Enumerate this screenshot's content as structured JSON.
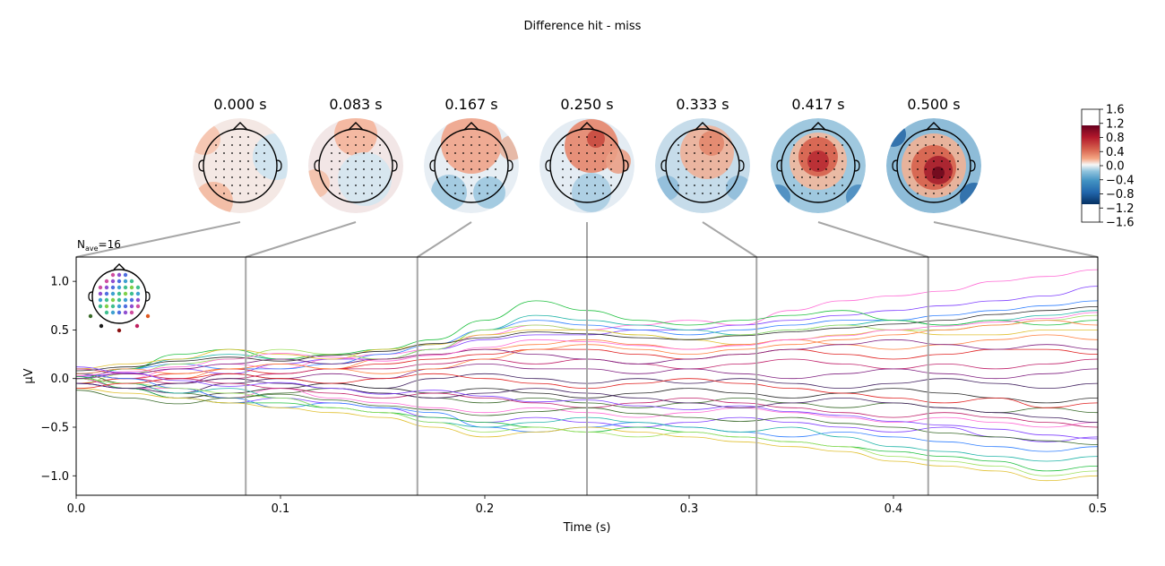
{
  "suptitle": "Difference hit - miss",
  "nave_label": {
    "base": "N",
    "sub": "ave",
    "value": "=16"
  },
  "colorbar": {
    "ticks": [
      "1.6",
      "1.2",
      "0.8",
      "0.4",
      "0.0",
      "−0.4",
      "−0.8",
      "−1.2",
      "−1.6"
    ],
    "colormap": "RdBu_r"
  },
  "topomaps": [
    {
      "label": "0.000 s",
      "time": 0.0
    },
    {
      "label": "0.083 s",
      "time": 0.083
    },
    {
      "label": "0.167 s",
      "time": 0.167
    },
    {
      "label": "0.250 s",
      "time": 0.25
    },
    {
      "label": "0.333 s",
      "time": 0.333
    },
    {
      "label": "0.417 s",
      "time": 0.417
    },
    {
      "label": "0.500 s",
      "time": 0.5
    }
  ],
  "chart_data": {
    "type": "line",
    "title": "",
    "xlabel": "Time (s)",
    "ylabel": "µV",
    "xlim": [
      0.0,
      0.5
    ],
    "ylim": [
      -1.2,
      1.25
    ],
    "xticks": [
      "0.0",
      "0.1",
      "0.2",
      "0.3",
      "0.4",
      "0.5"
    ],
    "xtick_values": [
      0.0,
      0.1,
      0.2,
      0.3,
      0.4,
      0.5
    ],
    "yticks": [
      "−1.0",
      "−0.5",
      "0.0",
      "0.5",
      "1.0"
    ],
    "ytick_values": [
      -1.0,
      -0.5,
      0.0,
      0.5,
      1.0
    ],
    "marker_times": [
      0.083,
      0.167,
      0.25,
      0.333,
      0.417
    ],
    "grid": false,
    "series_count": 60,
    "x": [
      0.0,
      0.025,
      0.05,
      0.075,
      0.1,
      0.125,
      0.15,
      0.175,
      0.2,
      0.225,
      0.25,
      0.275,
      0.3,
      0.325,
      0.35,
      0.375,
      0.4,
      0.425,
      0.45,
      0.475,
      0.5
    ],
    "series_colors": [
      "#ff6ad5",
      "#7f3fff",
      "#2f7fff",
      "#22b5a8",
      "#20c040",
      "#9fe060",
      "#e0c030",
      "#ff8040",
      "#e02020",
      "#c0206a",
      "#802080",
      "#40205f",
      "#2a2a2a",
      "#3a6a2a"
    ],
    "series": [
      {
        "values": [
          0.05,
          0.0,
          0.1,
          0.15,
          0.1,
          0.2,
          0.25,
          0.3,
          0.45,
          0.55,
          0.5,
          0.55,
          0.6,
          0.55,
          0.7,
          0.8,
          0.85,
          0.9,
          1.0,
          1.05,
          1.12
        ]
      },
      {
        "values": [
          0.02,
          0.05,
          0.1,
          0.05,
          0.15,
          0.2,
          0.2,
          0.3,
          0.4,
          0.45,
          0.45,
          0.5,
          0.5,
          0.55,
          0.6,
          0.65,
          0.7,
          0.75,
          0.8,
          0.85,
          0.95
        ]
      },
      {
        "values": [
          0.0,
          0.1,
          0.15,
          0.1,
          0.1,
          0.15,
          0.25,
          0.35,
          0.5,
          0.6,
          0.55,
          0.5,
          0.45,
          0.5,
          0.55,
          0.6,
          0.6,
          0.65,
          0.7,
          0.75,
          0.8
        ]
      },
      {
        "values": [
          0.05,
          0.1,
          0.2,
          0.25,
          0.2,
          0.15,
          0.2,
          0.3,
          0.5,
          0.65,
          0.6,
          0.55,
          0.5,
          0.45,
          0.5,
          0.55,
          0.6,
          0.55,
          0.6,
          0.65,
          0.7
        ]
      },
      {
        "values": [
          0.0,
          0.1,
          0.25,
          0.3,
          0.2,
          0.25,
          0.3,
          0.4,
          0.6,
          0.8,
          0.7,
          0.6,
          0.55,
          0.6,
          0.65,
          0.7,
          0.6,
          0.55,
          0.6,
          0.55,
          0.6
        ]
      },
      {
        "values": [
          -0.05,
          0.05,
          0.15,
          0.2,
          0.3,
          0.25,
          0.2,
          0.3,
          0.5,
          0.55,
          0.5,
          0.45,
          0.4,
          0.45,
          0.5,
          0.55,
          0.5,
          0.5,
          0.55,
          0.6,
          0.65
        ]
      },
      {
        "values": [
          0.1,
          0.15,
          0.2,
          0.3,
          0.25,
          0.2,
          0.3,
          0.35,
          0.45,
          0.5,
          0.5,
          0.45,
          0.4,
          0.35,
          0.4,
          0.45,
          0.5,
          0.45,
          0.45,
          0.5,
          0.5
        ]
      },
      {
        "values": [
          0.0,
          -0.05,
          0.0,
          0.1,
          0.15,
          0.1,
          0.2,
          0.25,
          0.3,
          0.35,
          0.4,
          0.35,
          0.3,
          0.35,
          0.4,
          0.35,
          0.3,
          0.35,
          0.4,
          0.45,
          0.4
        ]
      },
      {
        "values": [
          -0.05,
          0.0,
          0.05,
          0.1,
          0.05,
          0.1,
          0.15,
          0.2,
          0.25,
          0.3,
          0.3,
          0.25,
          0.2,
          0.25,
          0.3,
          0.25,
          0.2,
          0.25,
          0.3,
          0.3,
          0.25
        ]
      },
      {
        "values": [
          0.05,
          0.0,
          -0.05,
          0.0,
          0.05,
          0.1,
          0.1,
          0.15,
          0.2,
          0.15,
          0.2,
          0.15,
          0.1,
          0.15,
          0.2,
          0.15,
          0.1,
          0.15,
          0.1,
          0.15,
          0.2
        ]
      },
      {
        "values": [
          0.0,
          -0.1,
          -0.05,
          0.05,
          0.0,
          0.05,
          0.0,
          0.1,
          0.15,
          0.1,
          0.1,
          0.05,
          0.1,
          0.05,
          0.0,
          0.05,
          0.1,
          0.05,
          0.0,
          0.05,
          0.1
        ]
      },
      {
        "values": [
          -0.05,
          -0.1,
          -0.15,
          -0.05,
          0.0,
          -0.05,
          -0.1,
          0.0,
          0.05,
          0.0,
          -0.05,
          0.0,
          -0.05,
          0.0,
          -0.05,
          -0.1,
          -0.05,
          0.0,
          -0.05,
          -0.1,
          -0.05
        ]
      },
      {
        "values": [
          0.0,
          -0.1,
          -0.2,
          -0.15,
          -0.1,
          -0.05,
          -0.1,
          -0.15,
          -0.1,
          -0.15,
          -0.2,
          -0.15,
          -0.1,
          -0.15,
          -0.2,
          -0.15,
          -0.1,
          -0.15,
          -0.2,
          -0.25,
          -0.2
        ]
      },
      {
        "values": [
          0.05,
          -0.05,
          -0.15,
          -0.2,
          -0.15,
          -0.1,
          -0.15,
          -0.2,
          -0.25,
          -0.2,
          -0.25,
          -0.3,
          -0.25,
          -0.2,
          -0.25,
          -0.3,
          -0.25,
          -0.3,
          -0.35,
          -0.3,
          -0.35
        ]
      },
      {
        "values": [
          0.0,
          -0.1,
          -0.1,
          -0.2,
          -0.1,
          -0.2,
          -0.25,
          -0.3,
          -0.35,
          -0.3,
          -0.35,
          -0.4,
          -0.35,
          -0.3,
          -0.35,
          -0.4,
          -0.45,
          -0.4,
          -0.45,
          -0.5,
          -0.45
        ]
      },
      {
        "values": [
          -0.05,
          -0.1,
          -0.2,
          -0.25,
          -0.2,
          -0.25,
          -0.3,
          -0.4,
          -0.45,
          -0.4,
          -0.45,
          -0.5,
          -0.45,
          -0.4,
          -0.45,
          -0.5,
          -0.55,
          -0.5,
          -0.6,
          -0.65,
          -0.6
        ]
      },
      {
        "values": [
          0.05,
          0.0,
          -0.1,
          -0.2,
          -0.3,
          -0.25,
          -0.3,
          -0.35,
          -0.5,
          -0.55,
          -0.5,
          -0.45,
          -0.5,
          -0.55,
          -0.6,
          -0.55,
          -0.6,
          -0.65,
          -0.7,
          -0.75,
          -0.7
        ]
      },
      {
        "values": [
          0.0,
          -0.05,
          -0.15,
          -0.1,
          -0.2,
          -0.3,
          -0.35,
          -0.45,
          -0.5,
          -0.45,
          -0.4,
          -0.45,
          -0.5,
          -0.55,
          -0.5,
          -0.6,
          -0.7,
          -0.75,
          -0.8,
          -0.85,
          -0.8
        ]
      },
      {
        "values": [
          0.02,
          -0.1,
          -0.2,
          -0.25,
          -0.25,
          -0.3,
          -0.35,
          -0.4,
          -0.45,
          -0.5,
          -0.55,
          -0.5,
          -0.55,
          -0.6,
          -0.65,
          -0.7,
          -0.75,
          -0.8,
          -0.85,
          -0.95,
          -0.9
        ]
      },
      {
        "values": [
          0.0,
          -0.05,
          -0.1,
          -0.15,
          -0.2,
          -0.3,
          -0.35,
          -0.45,
          -0.55,
          -0.5,
          -0.55,
          -0.6,
          -0.55,
          -0.6,
          -0.65,
          -0.7,
          -0.8,
          -0.85,
          -0.9,
          -1.0,
          -0.95
        ]
      },
      {
        "values": [
          -0.1,
          -0.15,
          -0.2,
          -0.25,
          -0.3,
          -0.35,
          -0.4,
          -0.5,
          -0.6,
          -0.55,
          -0.5,
          -0.55,
          -0.6,
          -0.65,
          -0.7,
          -0.75,
          -0.85,
          -0.9,
          -0.95,
          -1.05,
          -1.0
        ]
      },
      {
        "values": [
          0.05,
          0.1,
          0.05,
          0.1,
          0.15,
          0.1,
          0.05,
          0.1,
          0.2,
          0.3,
          0.35,
          0.3,
          0.25,
          0.3,
          0.35,
          0.4,
          0.45,
          0.5,
          0.55,
          0.6,
          0.55
        ]
      },
      {
        "values": [
          -0.1,
          -0.05,
          0.0,
          0.05,
          0.0,
          -0.05,
          0.0,
          0.05,
          0.0,
          -0.05,
          -0.1,
          -0.05,
          0.0,
          -0.05,
          -0.1,
          -0.15,
          -0.2,
          -0.25,
          -0.2,
          -0.3,
          -0.25
        ]
      },
      {
        "values": [
          0.1,
          0.05,
          0.0,
          -0.05,
          -0.1,
          -0.15,
          -0.2,
          -0.15,
          -0.2,
          -0.25,
          -0.3,
          -0.25,
          -0.2,
          -0.25,
          -0.3,
          -0.35,
          -0.4,
          -0.35,
          -0.4,
          -0.45,
          -0.5
        ]
      },
      {
        "values": [
          0.0,
          0.05,
          0.1,
          0.15,
          0.2,
          0.15,
          0.2,
          0.25,
          0.3,
          0.25,
          0.2,
          0.15,
          0.2,
          0.25,
          0.3,
          0.35,
          0.4,
          0.35,
          0.3,
          0.35,
          0.3
        ]
      },
      {
        "values": [
          -0.05,
          -0.1,
          -0.05,
          0.0,
          -0.05,
          -0.1,
          -0.15,
          -0.2,
          -0.15,
          -0.1,
          -0.15,
          -0.2,
          -0.25,
          -0.3,
          -0.25,
          -0.2,
          -0.25,
          -0.3,
          -0.35,
          -0.4,
          -0.45
        ]
      },
      {
        "values": [
          0.08,
          0.12,
          0.18,
          0.22,
          0.18,
          0.24,
          0.28,
          0.36,
          0.42,
          0.48,
          0.46,
          0.42,
          0.4,
          0.44,
          0.48,
          0.52,
          0.56,
          0.6,
          0.66,
          0.7,
          0.74
        ]
      },
      {
        "values": [
          -0.12,
          -0.2,
          -0.26,
          -0.2,
          -0.16,
          -0.22,
          -0.28,
          -0.32,
          -0.38,
          -0.34,
          -0.3,
          -0.36,
          -0.4,
          -0.44,
          -0.4,
          -0.46,
          -0.5,
          -0.56,
          -0.6,
          -0.64,
          -0.68
        ]
      },
      {
        "values": [
          0.03,
          0.07,
          0.12,
          0.2,
          0.26,
          0.22,
          0.18,
          0.24,
          0.32,
          0.4,
          0.38,
          0.34,
          0.3,
          0.34,
          0.4,
          0.44,
          0.5,
          0.54,
          0.58,
          0.62,
          0.68
        ]
      },
      {
        "values": [
          0.12,
          0.06,
          -0.02,
          -0.08,
          -0.04,
          -0.1,
          -0.16,
          -0.12,
          -0.18,
          -0.24,
          -0.22,
          -0.28,
          -0.32,
          -0.28,
          -0.34,
          -0.38,
          -0.44,
          -0.48,
          -0.52,
          -0.58,
          -0.62
        ]
      }
    ]
  }
}
